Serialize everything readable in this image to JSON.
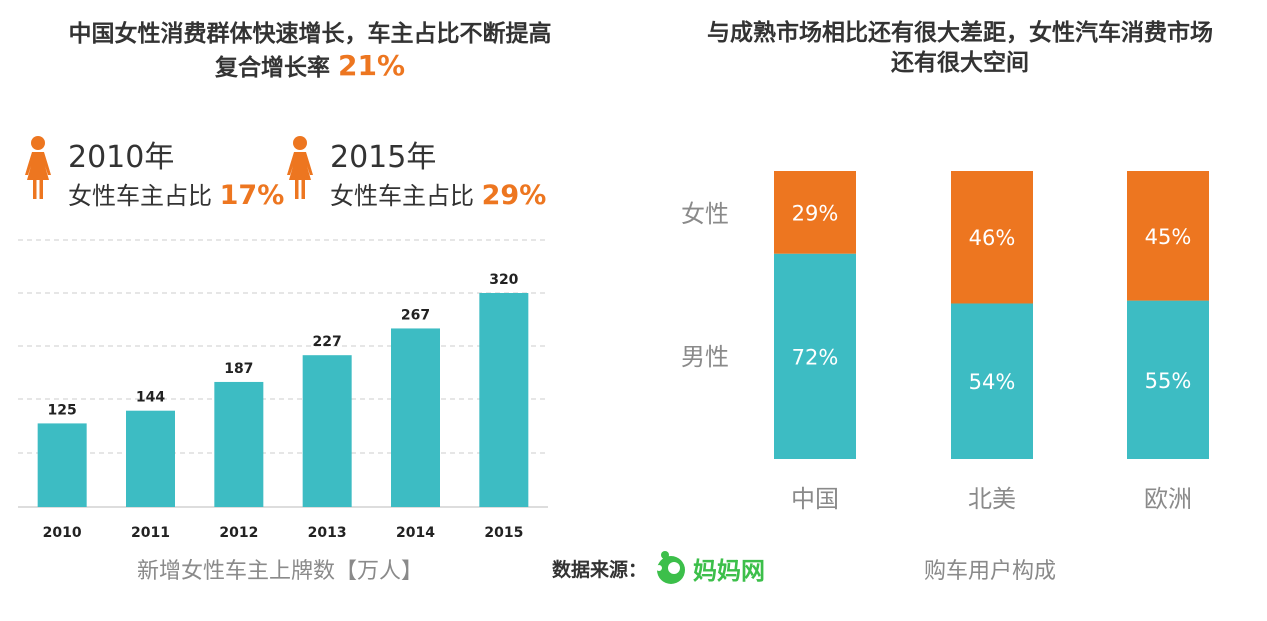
{
  "left": {
    "title_line1": "中国女性消费群体快速增长，车主占比不断提高",
    "title_line2_prefix": "复合增长率",
    "title_line2_value": "21%",
    "stats": [
      {
        "year": "2010年",
        "label": "女性车主占比",
        "value": "17%"
      },
      {
        "year": "2015年",
        "label": "女性车主占比",
        "value": "29%"
      }
    ],
    "caption": "新增女性车主上牌数【万人】"
  },
  "right": {
    "title_line1": "与成熟市场相比还有很大差距，女性汽车消费市场",
    "title_line2": "还有很大空间",
    "caption": "购车用户构成"
  },
  "source": {
    "label": "数据来源：",
    "brand": "妈妈网"
  },
  "colors": {
    "teal": "#3DBCC3",
    "orange": "#ED7620",
    "grid": "#cccccc"
  },
  "chart_data": [
    {
      "type": "bar",
      "categories": [
        "2010",
        "2011",
        "2012",
        "2013",
        "2014",
        "2015"
      ],
      "values": [
        125,
        144,
        187,
        227,
        267,
        320
      ],
      "ylim": [
        0,
        320
      ],
      "grid": true,
      "title": "新增女性车主上牌数【万人】"
    },
    {
      "type": "bar",
      "stacked": true,
      "categories": [
        "中国",
        "北美",
        "欧洲"
      ],
      "series": [
        {
          "name": "男性",
          "values": [
            72,
            54,
            55
          ],
          "labels": [
            "72%",
            "54%",
            "55%"
          ]
        },
        {
          "name": "女性",
          "values": [
            29,
            46,
            45
          ],
          "labels": [
            "29%",
            "46%",
            "45%"
          ]
        }
      ],
      "title": "购车用户构成"
    }
  ]
}
